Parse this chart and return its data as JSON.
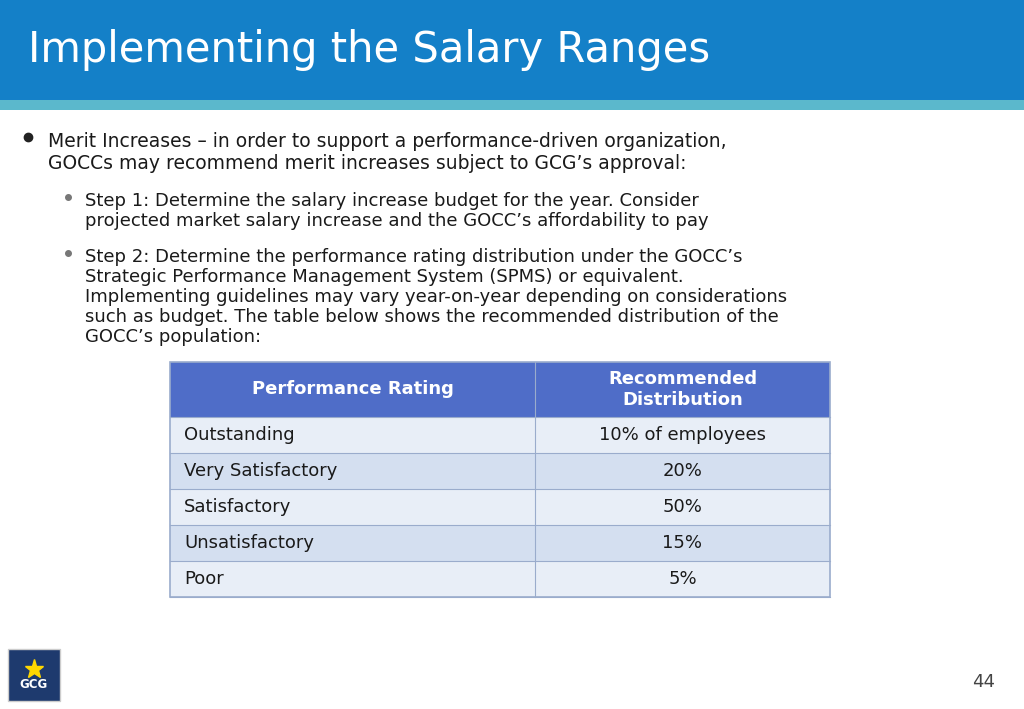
{
  "title": "Implementing the Salary Ranges",
  "title_bg_color": "#1480C8",
  "title_text_color": "#FFFFFF",
  "accent_bar_color": "#5BB8CC",
  "slide_bg_color": "#FFFFFF",
  "body_text_color": "#1A1A1A",
  "page_number": "44",
  "bullet1_line1": "Merit Increases – in order to support a performance-driven organization,",
  "bullet1_line2": "GOCCs may recommend merit increases subject to GCG’s approval:",
  "sub_bullet1_line1": "Step 1: Determine the salary increase budget for the year. Consider",
  "sub_bullet1_line2": "projected market salary increase and the GOCC’s affordability to pay",
  "sub_bullet2_lines": [
    "Step 2: Determine the performance rating distribution under the GOCC’s",
    "Strategic Performance Management System (SPMS) or equivalent.",
    "Implementing guidelines may vary year-on-year depending on considerations",
    "such as budget. The table below shows the recommended distribution of the",
    "GOCC’s population:"
  ],
  "table_header_bg": "#4F6DC8",
  "table_header_text_color": "#FFFFFF",
  "table_row_bg_1": "#E8EEF7",
  "table_row_bg_2": "#D4DFF0",
  "table_border_color": "#9AACCC",
  "table_text_color": "#1A1A1A",
  "table_col1_header": "Performance Rating",
  "table_col2_header": "Recommended\nDistribution",
  "table_rows": [
    [
      "Outstanding",
      "10% of employees"
    ],
    [
      "Very Satisfactory",
      "20%"
    ],
    [
      "Satisfactory",
      "50%"
    ],
    [
      "Unsatisfactory",
      "15%"
    ],
    [
      "Poor",
      "5%"
    ]
  ],
  "title_fontsize": 30,
  "body_fontsize": 13.5,
  "sub_body_fontsize": 13,
  "table_fontsize": 13,
  "title_bar_height": 100,
  "accent_bar_height": 10
}
